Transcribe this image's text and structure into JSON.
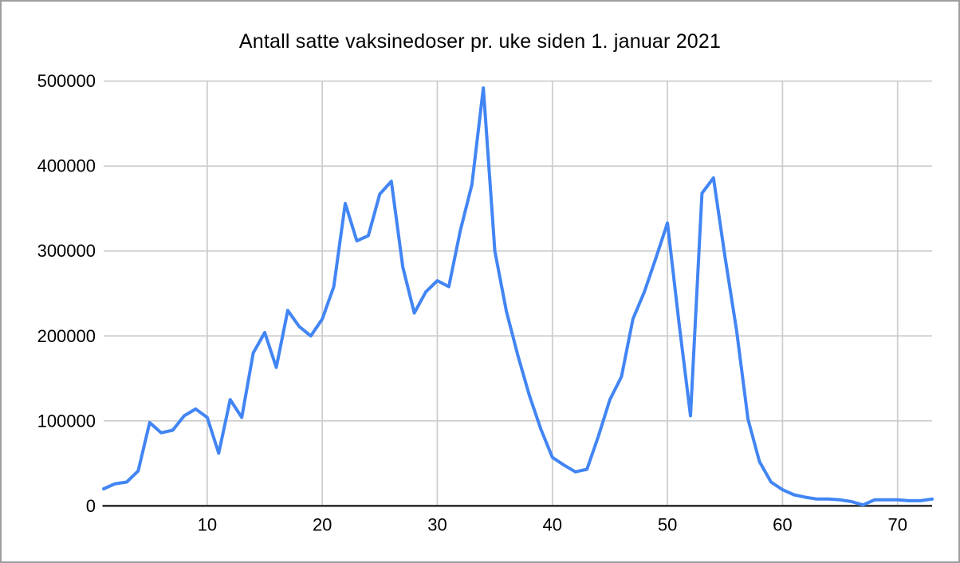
{
  "title": "Antall satte vaksinedoser pr. uke siden 1. januar 2021",
  "colors": {
    "line": "#4285f4",
    "gridline": "#cccccc",
    "axis": "#333333",
    "border": "#9e9e9e",
    "background": "#ffffff",
    "text": "#000000"
  },
  "chart_data": {
    "type": "line",
    "title": "Antall satte vaksinedoser pr. uke siden 1. januar 2021",
    "xlabel": "",
    "ylabel": "",
    "xlim": [
      1,
      73
    ],
    "ylim": [
      0,
      500000
    ],
    "x_ticks": [
      10,
      20,
      30,
      40,
      50,
      60,
      70
    ],
    "y_ticks": [
      0,
      100000,
      200000,
      300000,
      400000,
      500000
    ],
    "grid": true,
    "legend": "none",
    "x": [
      1,
      2,
      3,
      4,
      5,
      6,
      7,
      8,
      9,
      10,
      11,
      12,
      13,
      14,
      15,
      16,
      17,
      18,
      19,
      20,
      21,
      22,
      23,
      24,
      25,
      26,
      27,
      28,
      29,
      30,
      31,
      32,
      33,
      34,
      35,
      36,
      37,
      38,
      39,
      40,
      41,
      42,
      43,
      44,
      45,
      46,
      47,
      48,
      49,
      50,
      51,
      52,
      53,
      54,
      55,
      56,
      57,
      58,
      59,
      60,
      61,
      62,
      63,
      64,
      65,
      66,
      67,
      68,
      69,
      70,
      71,
      72,
      73
    ],
    "values": [
      20000,
      26000,
      28000,
      41000,
      98000,
      86000,
      89000,
      106000,
      114000,
      104000,
      62000,
      125000,
      104000,
      180000,
      204000,
      163000,
      230000,
      211000,
      200000,
      220000,
      258000,
      356000,
      312000,
      318000,
      367000,
      382000,
      281000,
      227000,
      252000,
      265000,
      258000,
      324000,
      378000,
      492000,
      300000,
      229000,
      177000,
      130000,
      90000,
      57000,
      48000,
      40000,
      43000,
      82000,
      125000,
      152000,
      220000,
      252000,
      292000,
      333000,
      216000,
      106000,
      368000,
      386000,
      293000,
      207000,
      102000,
      52000,
      28000,
      19000,
      13000,
      10000,
      8000,
      8000,
      7000,
      5000,
      1000,
      7000,
      7000,
      7000,
      6000,
      6000,
      8000
    ]
  }
}
